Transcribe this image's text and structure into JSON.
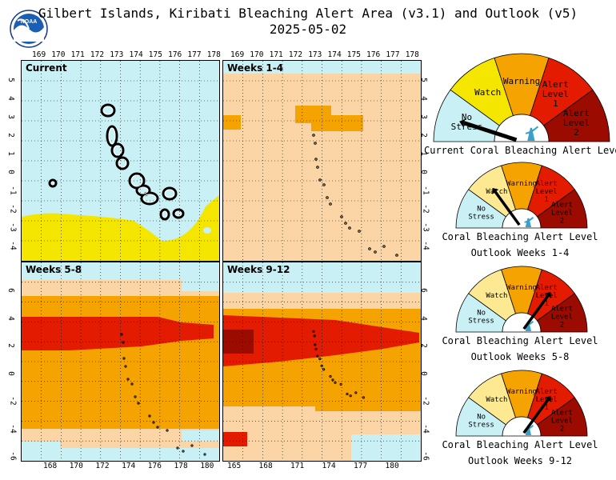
{
  "header": {
    "title": "Gilbert Islands, Kiribati Bleaching Alert Area (v3.1) and Outlook (v5)",
    "date": "2025-05-02",
    "logo_text": "NOAA"
  },
  "colors": {
    "no_stress": "#c8f0f5",
    "watch": "#fde992",
    "watch_yellow": "#f5e600",
    "warning": "#f5a300",
    "warning_light": "#fcd5a6",
    "alert1": "#e31b00",
    "alert2": "#9b0b00",
    "land": "#000000"
  },
  "maps": {
    "top_lon_ticks": [
      "169",
      "170",
      "171",
      "172",
      "173",
      "174",
      "175",
      "176",
      "177",
      "178"
    ],
    "top_right_lon_ticks": [
      "169",
      "170",
      "171",
      "172",
      "173",
      "174",
      "175",
      "176",
      "177",
      "178"
    ],
    "bottom_left_lon_ticks": [
      "168",
      "170",
      "172",
      "174",
      "176",
      "178",
      "180"
    ],
    "bottom_right_lon_ticks": [
      "165",
      "168",
      "171",
      "174",
      "177",
      "180"
    ],
    "top_lat_ticks": [
      "5",
      "4",
      "3",
      "2",
      "1",
      "0",
      "-1",
      "-2",
      "-3",
      "-4"
    ],
    "bottom_lat_ticks": [
      "6",
      "4",
      "2",
      "0",
      "-2",
      "-4",
      "-6"
    ],
    "top_right_lat_ticks_right": [
      "5",
      "4",
      "3",
      "2",
      "1",
      "0",
      "-1",
      "-2",
      "-3",
      "-4"
    ],
    "bottom_right_lat_ticks_right": [
      "6",
      "4",
      "2",
      "0",
      "-2",
      "-4",
      "-6"
    ],
    "panels": [
      {
        "label": "Current"
      },
      {
        "label": "Weeks 1-4"
      },
      {
        "label": "Weeks 5-8"
      },
      {
        "label": "Weeks 9-12"
      }
    ]
  },
  "gauges": {
    "segments": {
      "no_stress": "No Stress",
      "watch": "Watch",
      "warning": "Warning",
      "alert1": "Alert Level 1",
      "alert2": "Alert Level 2"
    },
    "items": [
      {
        "caption1": "Current Coral Bleaching Alert Level",
        "caption2": "",
        "level": "No Stress"
      },
      {
        "caption1": "Coral Bleaching Alert Level",
        "caption2": "Outlook Weeks 1-4",
        "level": "Watch"
      },
      {
        "caption1": "Coral Bleaching Alert Level",
        "caption2": "Outlook Weeks 5-8",
        "level": "Alert Level 1"
      },
      {
        "caption1": "Coral Bleaching Alert Level",
        "caption2": "Outlook Weeks 9-12",
        "level": "Alert Level 1"
      }
    ]
  }
}
